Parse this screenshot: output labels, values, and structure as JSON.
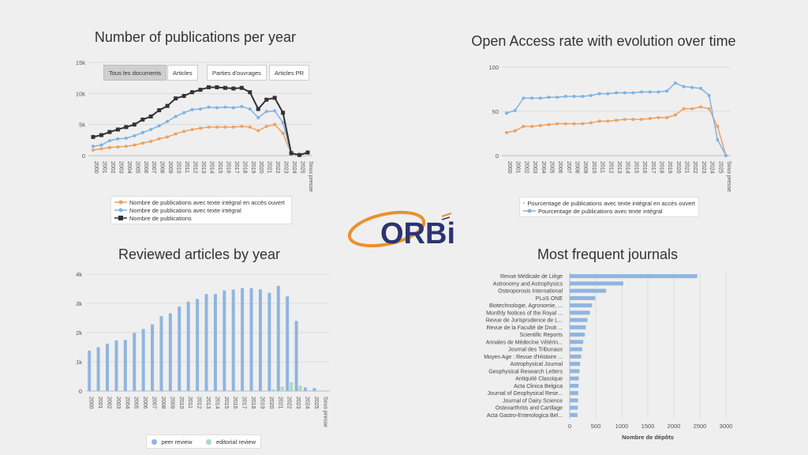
{
  "logo": {
    "text": "ORBi",
    "colors": {
      "orange": "#e8912e",
      "navy": "#2b3470"
    }
  },
  "chart_data": [
    {
      "type": "line",
      "title": "Number of publications per year",
      "buttons": [
        "Tous les documents",
        "Articles",
        "Parties d'ouvrages",
        "Articles PR"
      ],
      "active_button": "Tous les documents",
      "categories": [
        "2000",
        "2001",
        "2002",
        "2003",
        "2004",
        "2005",
        "2006",
        "2007",
        "2008",
        "2009",
        "2010",
        "2011",
        "2012",
        "2013",
        "2014",
        "2015",
        "2016",
        "2017",
        "2018",
        "2019",
        "2020",
        "2021",
        "2022",
        "2023",
        "2024",
        "2025",
        "Sous presse"
      ],
      "y_ticks": [
        "0",
        "5k",
        "10k",
        "15k"
      ],
      "ylim": [
        0,
        15000
      ],
      "series": [
        {
          "name": "Nombre de publications avec texte intégral en accès ouvert",
          "color": "#f0a060",
          "marker": "circle",
          "values": [
            900,
            1100,
            1300,
            1400,
            1500,
            1700,
            2000,
            2300,
            2700,
            3000,
            3500,
            3900,
            4200,
            4400,
            4600,
            4600,
            4600,
            4600,
            4700,
            4600,
            4000,
            4700,
            5000,
            3600,
            300,
            100,
            500
          ]
        },
        {
          "name": "Nombre de publications avec texte intégral",
          "color": "#7fb2e5",
          "marker": "diamond",
          "values": [
            1500,
            1700,
            2400,
            2700,
            2800,
            3200,
            3700,
            4200,
            4800,
            5500,
            6300,
            6900,
            7400,
            7500,
            7800,
            7700,
            7800,
            7700,
            7900,
            7500,
            6100,
            7100,
            7200,
            5300,
            300,
            200,
            500
          ]
        },
        {
          "name": "Nombre de publications",
          "color": "#333333",
          "marker": "square",
          "values": [
            3000,
            3300,
            3800,
            4200,
            4600,
            5000,
            5800,
            6300,
            7300,
            8000,
            9200,
            9600,
            10200,
            10600,
            11000,
            11000,
            10900,
            10800,
            10900,
            10200,
            7500,
            9000,
            9300,
            6900,
            400,
            100,
            500
          ]
        }
      ]
    },
    {
      "type": "line",
      "title": "Open Access rate with evolution over time",
      "categories": [
        "2000",
        "2001",
        "2002",
        "2003",
        "2004",
        "2005",
        "2006",
        "2007",
        "2008",
        "2009",
        "2010",
        "2011",
        "2012",
        "2013",
        "2014",
        "2015",
        "2016",
        "2017",
        "2018",
        "2019",
        "2020",
        "2021",
        "2022",
        "2023",
        "2024",
        "2025",
        "Sous presse"
      ],
      "y_ticks": [
        "0",
        "50",
        "100"
      ],
      "ylim": [
        0,
        100
      ],
      "series": [
        {
          "name": "Pourcentage de publications avec texte intégral en accès ouvert",
          "color": "#f0a060",
          "values": [
            26,
            28,
            33,
            33,
            34,
            35,
            36,
            36,
            36,
            36,
            37,
            39,
            39,
            40,
            41,
            41,
            41,
            42,
            43,
            43,
            46,
            53,
            53,
            55,
            53,
            33,
            0
          ]
        },
        {
          "name": "Pourcentage de publications avec texte intégral",
          "color": "#7fb2e5",
          "values": [
            48,
            51,
            65,
            65,
            65,
            66,
            66,
            67,
            67,
            67,
            68,
            70,
            70,
            71,
            71,
            71,
            72,
            72,
            72,
            73,
            82,
            78,
            77,
            76,
            68,
            18,
            0
          ]
        }
      ]
    },
    {
      "type": "bar",
      "title": "Reviewed articles by year",
      "categories": [
        "2000",
        "2001",
        "2002",
        "2003",
        "2004",
        "2005",
        "2006",
        "2007",
        "2008",
        "2009",
        "2010",
        "2011",
        "2012",
        "2013",
        "2014",
        "2015",
        "2016",
        "2017",
        "2018",
        "2019",
        "2020",
        "2021",
        "2022",
        "2023",
        "2024",
        "2025",
        "Sous presse"
      ],
      "y_ticks": [
        "0",
        "1k",
        "2k",
        "3k",
        "4k"
      ],
      "ylim": [
        0,
        4000
      ],
      "series": [
        {
          "name": "peer review",
          "color": "#8fb5e0",
          "values": [
            1380,
            1500,
            1620,
            1730,
            1750,
            1990,
            2120,
            2280,
            2560,
            2660,
            2890,
            3060,
            3150,
            3320,
            3320,
            3440,
            3470,
            3520,
            3520,
            3480,
            3360,
            3600,
            3240,
            2400,
            120,
            100,
            null
          ]
        },
        {
          "name": "editorial review",
          "color": "#a8dcb8",
          "values": [
            0,
            0,
            0,
            0,
            0,
            0,
            0,
            0,
            0,
            0,
            0,
            0,
            0,
            0,
            0,
            0,
            0,
            0,
            0,
            0,
            60,
            150,
            300,
            180,
            0,
            0,
            null
          ]
        }
      ]
    },
    {
      "type": "bar",
      "orientation": "horizontal",
      "title": "Most frequent journals",
      "xlabel": "Nombre de dépôts",
      "x_ticks": [
        "0",
        "500",
        "1000",
        "1500",
        "2000",
        "2500",
        "3000"
      ],
      "xlim": [
        0,
        3000
      ],
      "color": "#8fb5e0",
      "categories": [
        "Revue Médicale de Liège",
        "Astronomy and Astrophysics",
        "Osteoporosis International",
        "PLoS ONE",
        "Biotechnologie, Agronomie, ...",
        "Monthly Notices of the Royal ...",
        "Revue de Jurisprudence de L...",
        "Revue de la Faculté de Droit ...",
        "Scientific Reports",
        "Annales de Médecine Vétérin...",
        "Journal des Tribunaux",
        "Moyen Age : Revue d'Histoire ...",
        "Astrophysical Journal",
        "Geophysical Research Letters",
        "Antiquité Classique",
        "Acta Clinica Belgica",
        "Journal of Geophysical Rese...",
        "Journal of Dairy Science",
        "Osteoarthritis and Cartilage",
        "Acta Gastro-Enterologica Bel..."
      ],
      "values": [
        2450,
        1030,
        700,
        490,
        430,
        390,
        340,
        310,
        290,
        260,
        240,
        220,
        200,
        190,
        175,
        170,
        165,
        160,
        155,
        150
      ]
    }
  ]
}
